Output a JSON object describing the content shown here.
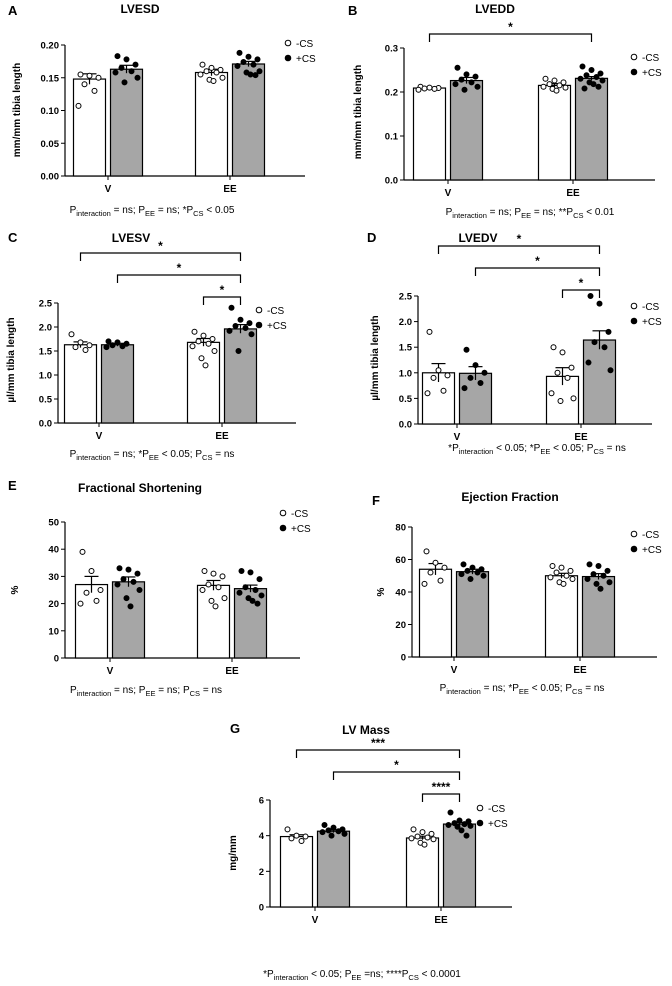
{
  "figure": {
    "legend": {
      "minus_label": "-CS",
      "plus_label": "+CS"
    },
    "colors": {
      "minus_fill": "#ffffff",
      "plus_fill": "#a6a6a6",
      "stroke": "#000000"
    }
  },
  "chart_data": [
    {
      "id": "A",
      "panel_label": "A",
      "type": "bar",
      "title": "LVESD",
      "ylabel": "mm/mm tibia length",
      "xlabel": "",
      "categories": [
        "V",
        "EE"
      ],
      "ylim": [
        0,
        0.2
      ],
      "yticks": [
        0,
        0.05,
        0.1,
        0.15,
        0.2
      ],
      "ytick_labels": [
        "0.00",
        "0.05",
        "0.10",
        "0.15",
        "0.20"
      ],
      "series": [
        {
          "name": "-CS",
          "values": [
            0.148,
            0.158
          ],
          "errors": [
            0.008,
            0.005
          ],
          "points": [
            [
              0.155,
              0.153,
              0.15,
              0.14,
              0.13,
              0.107
            ],
            [
              0.17,
              0.165,
              0.162,
              0.16,
              0.158,
              0.155,
              0.15,
              0.147,
              0.145
            ]
          ]
        },
        {
          "name": "+CS",
          "values": [
            0.163,
            0.171
          ],
          "errors": [
            0.006,
            0.004
          ],
          "points": [
            [
              0.183,
              0.178,
              0.17,
              0.165,
              0.16,
              0.158,
              0.15,
              0.143
            ],
            [
              0.188,
              0.182,
              0.178,
              0.174,
              0.17,
              0.168,
              0.16,
              0.158,
              0.155,
              0.154
            ]
          ]
        }
      ],
      "significance": [],
      "footnote": {
        "runs": [
          [
            "P",
            "",
            ""
          ],
          [
            "interaction",
            "sub",
            ""
          ],
          [
            " = ns; P",
            "",
            ""
          ],
          [
            "EE",
            "sub",
            ""
          ],
          [
            " = ns; *P",
            "",
            ""
          ],
          [
            "CS",
            "sub",
            ""
          ],
          [
            " < 0.05",
            "",
            ""
          ]
        ]
      }
    },
    {
      "id": "B",
      "panel_label": "B",
      "type": "bar",
      "title": "LVEDD",
      "ylabel": "mm/mm tibia length",
      "xlabel": "",
      "categories": [
        "V",
        "EE"
      ],
      "ylim": [
        0,
        0.3
      ],
      "yticks": [
        0,
        0.1,
        0.2,
        0.3
      ],
      "ytick_labels": [
        "0.0",
        "0.1",
        "0.2",
        "0.3"
      ],
      "series": [
        {
          "name": "-CS",
          "values": [
            0.209,
            0.215
          ],
          "errors": [
            0.002,
            0.004
          ],
          "points": [
            [
              0.212,
              0.21,
              0.209,
              0.208,
              0.207,
              0.205
            ],
            [
              0.23,
              0.226,
              0.222,
              0.218,
              0.215,
              0.212,
              0.21,
              0.207,
              0.203
            ]
          ]
        },
        {
          "name": "+CS",
          "values": [
            0.226,
            0.231
          ],
          "errors": [
            0.007,
            0.004
          ],
          "points": [
            [
              0.255,
              0.24,
              0.235,
              0.228,
              0.222,
              0.218,
              0.212,
              0.205
            ],
            [
              0.258,
              0.25,
              0.242,
              0.238,
              0.234,
              0.23,
              0.226,
              0.222,
              0.218,
              0.212,
              0.208
            ]
          ]
        }
      ],
      "significance": [
        {
          "label": "*",
          "from": "V:-CS",
          "to": "EE:+CS"
        }
      ],
      "footnote": {
        "runs": [
          [
            "P",
            "",
            ""
          ],
          [
            "interaction",
            "sub",
            ""
          ],
          [
            " = ns; P",
            "",
            ""
          ],
          [
            "EE",
            "sub",
            ""
          ],
          [
            " = ns; **P",
            "",
            ""
          ],
          [
            "CS",
            "sub",
            ""
          ],
          [
            " < 0.01",
            "",
            ""
          ]
        ]
      }
    },
    {
      "id": "C",
      "panel_label": "C",
      "type": "bar",
      "title": "LVESV",
      "ylabel": "µl/mm tibia length",
      "xlabel": "",
      "categories": [
        "V",
        "EE"
      ],
      "ylim": [
        0,
        2.5
      ],
      "yticks": [
        0,
        0.5,
        1.0,
        1.5,
        2.0,
        2.5
      ],
      "ytick_labels": [
        "0.0",
        "0.5",
        "1.0",
        "1.5",
        "2.0",
        "2.5"
      ],
      "series": [
        {
          "name": "-CS",
          "values": [
            1.63,
            1.68
          ],
          "errors": [
            0.06,
            0.08
          ],
          "points": [
            [
              1.85,
              1.68,
              1.62,
              1.58,
              1.52
            ],
            [
              1.9,
              1.82,
              1.75,
              1.7,
              1.65,
              1.6,
              1.5,
              1.35,
              1.2
            ]
          ]
        },
        {
          "name": "+CS",
          "values": [
            1.63,
            1.96
          ],
          "errors": [
            0.03,
            0.09
          ],
          "points": [
            [
              1.7,
              1.68,
              1.65,
              1.62,
              1.6,
              1.58
            ],
            [
              2.4,
              2.15,
              2.08,
              2.02,
              1.98,
              1.92,
              1.85,
              1.5
            ]
          ]
        }
      ],
      "significance": [
        {
          "label": "*",
          "from": "V:-CS",
          "to": "EE:+CS"
        },
        {
          "label": "*",
          "from": "V:+CS",
          "to": "EE:+CS"
        },
        {
          "label": "*",
          "from": "EE:-CS",
          "to": "EE:+CS"
        }
      ],
      "footnote": {
        "runs": [
          [
            "P",
            "",
            ""
          ],
          [
            "interaction",
            "sub",
            ""
          ],
          [
            " = ns; *P",
            "",
            ""
          ],
          [
            "EE",
            "sub",
            ""
          ],
          [
            " < 0.05; P",
            "",
            ""
          ],
          [
            "CS",
            "sub",
            ""
          ],
          [
            " = ns",
            "",
            ""
          ]
        ]
      }
    },
    {
      "id": "D",
      "panel_label": "D",
      "type": "bar",
      "title": "LVEDV",
      "ylabel": "µl/mm tibia length",
      "xlabel": "",
      "categories": [
        "V",
        "EE"
      ],
      "ylim": [
        0,
        2.5
      ],
      "yticks": [
        0,
        0.5,
        1.0,
        1.5,
        2.0,
        2.5
      ],
      "ytick_labels": [
        "0.0",
        "0.5",
        "1.0",
        "1.5",
        "2.0",
        "2.5"
      ],
      "series": [
        {
          "name": "-CS",
          "values": [
            1.0,
            0.93
          ],
          "errors": [
            0.18,
            0.17
          ],
          "points": [
            [
              1.8,
              1.05,
              0.95,
              0.9,
              0.65,
              0.6
            ],
            [
              1.5,
              1.4,
              1.1,
              1.0,
              0.9,
              0.6,
              0.5,
              0.45
            ]
          ]
        },
        {
          "name": "+CS",
          "values": [
            0.99,
            1.64
          ],
          "errors": [
            0.13,
            0.18
          ],
          "points": [
            [
              1.45,
              1.15,
              1.0,
              0.9,
              0.8,
              0.7
            ],
            [
              2.5,
              2.35,
              1.8,
              1.6,
              1.5,
              1.2,
              1.05
            ]
          ]
        }
      ],
      "significance": [
        {
          "label": "*",
          "from": "V:-CS",
          "to": "EE:+CS"
        },
        {
          "label": "*",
          "from": "V:+CS",
          "to": "EE:+CS"
        },
        {
          "label": "*",
          "from": "EE:-CS",
          "to": "EE:+CS"
        }
      ],
      "footnote": {
        "runs": [
          [
            "*P",
            "",
            ""
          ],
          [
            "interaction",
            "sub",
            ""
          ],
          [
            " < 0.05; *P",
            "",
            ""
          ],
          [
            "EE",
            "sub",
            ""
          ],
          [
            " < 0.05; P",
            "",
            ""
          ],
          [
            "CS",
            "sub",
            ""
          ],
          [
            " = ns",
            "",
            ""
          ]
        ]
      }
    },
    {
      "id": "E",
      "panel_label": "E",
      "type": "bar",
      "title": "Fractional Shortening",
      "ylabel": "%",
      "xlabel": "",
      "categories": [
        "V",
        "EE"
      ],
      "ylim": [
        0,
        50
      ],
      "yticks": [
        0,
        10,
        20,
        30,
        40,
        50
      ],
      "ytick_labels": [
        "0",
        "10",
        "20",
        "30",
        "40",
        "50"
      ],
      "series": [
        {
          "name": "-CS",
          "values": [
            27.0,
            26.7
          ],
          "errors": [
            3.0,
            1.8
          ],
          "points": [
            [
              39.0,
              32.0,
              25.0,
              24.0,
              21.0,
              20.0
            ],
            [
              32.0,
              31.0,
              30.0,
              27.0,
              26.0,
              25.0,
              22.0,
              21.0,
              19.0
            ]
          ]
        },
        {
          "name": "+CS",
          "values": [
            28.0,
            25.5
          ],
          "errors": [
            1.8,
            1.3
          ],
          "points": [
            [
              33.0,
              32.5,
              31.0,
              29.0,
              28.0,
              27.0,
              25.0,
              22.0,
              19.0
            ],
            [
              32.0,
              31.5,
              29.0,
              26.0,
              25.0,
              24.0,
              23.0,
              22.0,
              21.0,
              20.0
            ]
          ]
        }
      ],
      "significance": [],
      "footnote": {
        "runs": [
          [
            "P",
            "",
            ""
          ],
          [
            "interaction",
            "sub",
            ""
          ],
          [
            " = ns; P",
            "",
            ""
          ],
          [
            "EE",
            "sub",
            ""
          ],
          [
            " = ns; P",
            "",
            ""
          ],
          [
            "CS",
            "sub",
            ""
          ],
          [
            " = ns",
            "",
            ""
          ]
        ]
      }
    },
    {
      "id": "F",
      "panel_label": "F",
      "type": "bar",
      "title": "Ejection Fraction",
      "ylabel": "%",
      "xlabel": "",
      "categories": [
        "V",
        "EE"
      ],
      "ylim": [
        0,
        80
      ],
      "yticks": [
        0,
        20,
        40,
        60,
        80
      ],
      "ytick_labels": [
        "0",
        "20",
        "40",
        "60",
        "80"
      ],
      "series": [
        {
          "name": "-CS",
          "values": [
            54.0,
            50.0
          ],
          "errors": [
            3.5,
            1.5
          ],
          "points": [
            [
              65.0,
              58.0,
              55.0,
              52.0,
              47.0,
              45.0
            ],
            [
              56.0,
              55.0,
              53.0,
              52.0,
              50.0,
              49.0,
              48.0,
              46.0,
              45.0
            ]
          ]
        },
        {
          "name": "+CS",
          "values": [
            52.5,
            49.5
          ],
          "errors": [
            1.5,
            1.8
          ],
          "points": [
            [
              57.0,
              55.0,
              54.0,
              53.0,
              52.0,
              51.0,
              50.0,
              48.0
            ],
            [
              57.0,
              56.0,
              53.0,
              51.0,
              50.0,
              48.0,
              46.0,
              45.0,
              42.0
            ]
          ]
        }
      ],
      "significance": [],
      "footnote": {
        "runs": [
          [
            "P",
            "",
            ""
          ],
          [
            "interaction",
            "sub",
            ""
          ],
          [
            " = ns; *P",
            "",
            ""
          ],
          [
            "EE",
            "sub",
            ""
          ],
          [
            " < 0.05; P",
            "",
            ""
          ],
          [
            "CS",
            "sub",
            ""
          ],
          [
            " = ns",
            "",
            ""
          ]
        ]
      }
    },
    {
      "id": "G",
      "panel_label": "G",
      "type": "bar",
      "title": "LV Mass",
      "ylabel": "mg/mm",
      "xlabel": "",
      "categories": [
        "V",
        "EE"
      ],
      "ylim": [
        0,
        6
      ],
      "yticks": [
        0,
        2,
        4,
        6
      ],
      "ytick_labels": [
        "0",
        "2",
        "4",
        "6"
      ],
      "series": [
        {
          "name": "-CS",
          "values": [
            3.95,
            3.87
          ],
          "errors": [
            0.1,
            0.1
          ],
          "points": [
            [
              4.35,
              4.0,
              3.95,
              3.85,
              3.7
            ],
            [
              4.35,
              4.2,
              4.1,
              3.95,
              3.9,
              3.85,
              3.8,
              3.6,
              3.5
            ]
          ]
        },
        {
          "name": "+CS",
          "values": [
            4.25,
            4.65
          ],
          "errors": [
            0.08,
            0.09
          ],
          "points": [
            [
              4.6,
              4.45,
              4.35,
              4.3,
              4.25,
              4.2,
              4.1,
              4.0
            ],
            [
              5.3,
              4.85,
              4.8,
              4.7,
              4.65,
              4.6,
              4.55,
              4.5,
              4.3,
              4.0
            ]
          ]
        }
      ],
      "significance": [
        {
          "label": "***",
          "from": "V:-CS",
          "to": "EE:+CS"
        },
        {
          "label": "*",
          "from": "V:+CS",
          "to": "EE:+CS"
        },
        {
          "label": "****",
          "from": "EE:-CS",
          "to": "EE:+CS"
        }
      ],
      "footnote": {
        "runs": [
          [
            "*P",
            "",
            ""
          ],
          [
            "interaction",
            "sub",
            ""
          ],
          [
            " < 0.05; P",
            "",
            ""
          ],
          [
            "EE",
            "sub",
            ""
          ],
          [
            " =ns; ****P",
            "",
            ""
          ],
          [
            "CS",
            "sub",
            ""
          ],
          [
            " < 0.0001",
            "",
            ""
          ]
        ]
      }
    }
  ]
}
